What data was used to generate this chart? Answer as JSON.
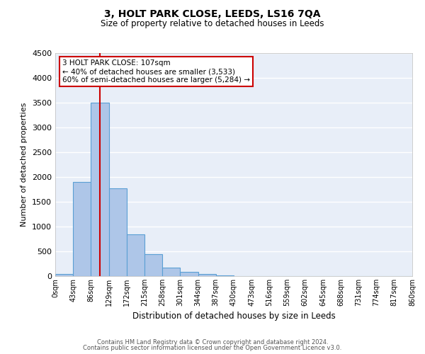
{
  "title": "3, HOLT PARK CLOSE, LEEDS, LS16 7QA",
  "subtitle": "Size of property relative to detached houses in Leeds",
  "xlabel": "Distribution of detached houses by size in Leeds",
  "ylabel": "Number of detached properties",
  "bin_labels": [
    "0sqm",
    "43sqm",
    "86sqm",
    "129sqm",
    "172sqm",
    "215sqm",
    "258sqm",
    "301sqm",
    "344sqm",
    "387sqm",
    "430sqm",
    "473sqm",
    "516sqm",
    "559sqm",
    "602sqm",
    "645sqm",
    "688sqm",
    "731sqm",
    "774sqm",
    "817sqm",
    "860sqm"
  ],
  "bar_values": [
    50,
    1900,
    3500,
    1775,
    850,
    450,
    175,
    90,
    50,
    20,
    0,
    0,
    0,
    0,
    0,
    0,
    0,
    0,
    0,
    0
  ],
  "bin_width": 43,
  "n_bins": 20,
  "bar_color": "#aec6e8",
  "bar_edge_color": "#5a9fd4",
  "bg_color": "#e8eef8",
  "grid_color": "#ffffff",
  "vline_x": 107,
  "vline_color": "#cc0000",
  "annotation_title": "3 HOLT PARK CLOSE: 107sqm",
  "annotation_line1": "← 40% of detached houses are smaller (3,533)",
  "annotation_line2": "60% of semi-detached houses are larger (5,284) →",
  "annotation_box_color": "#cc0000",
  "ylim": [
    0,
    4500
  ],
  "yticks": [
    0,
    500,
    1000,
    1500,
    2000,
    2500,
    3000,
    3500,
    4000,
    4500
  ],
  "footer_line1": "Contains HM Land Registry data © Crown copyright and database right 2024.",
  "footer_line2": "Contains public sector information licensed under the Open Government Licence v3.0."
}
